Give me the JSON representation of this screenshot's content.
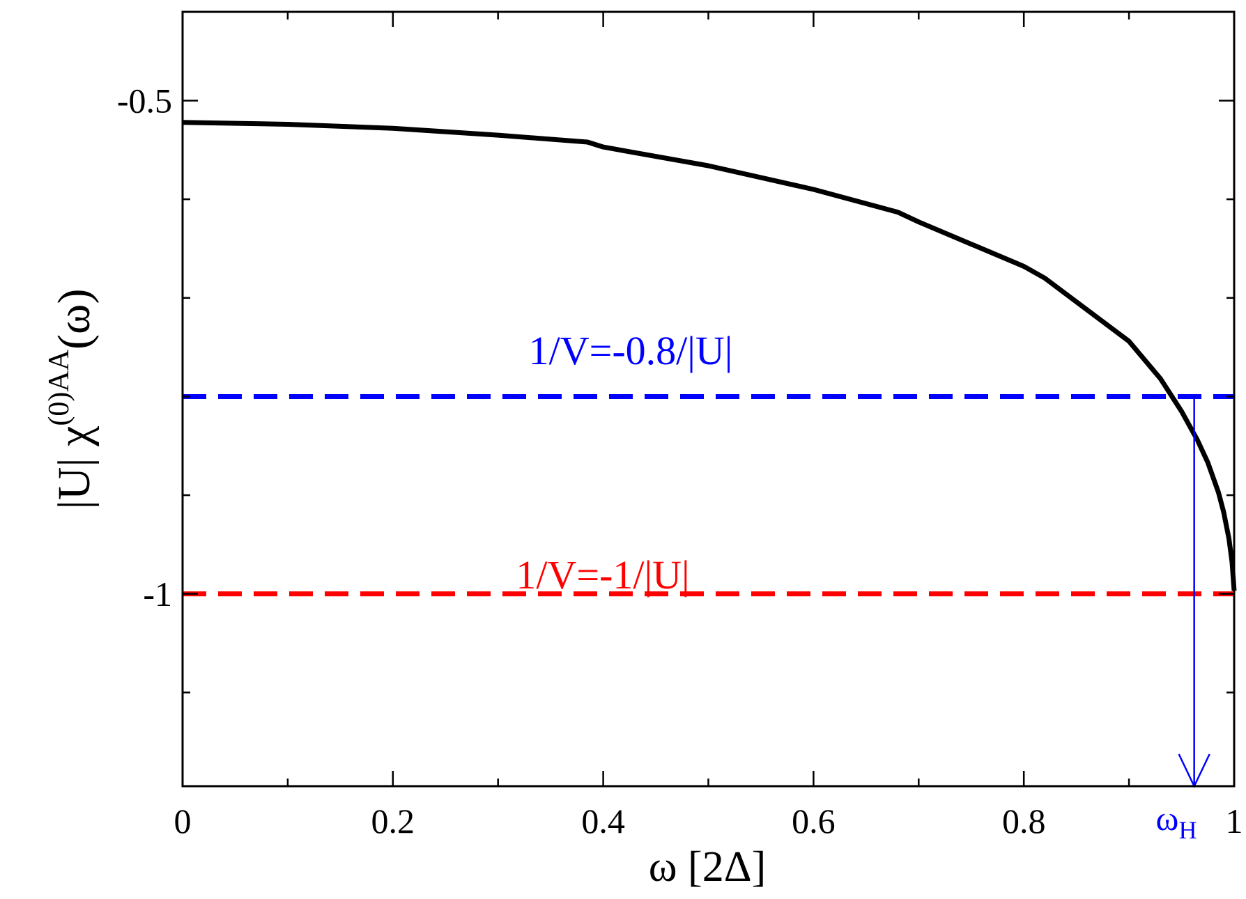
{
  "chart_data": {
    "type": "line",
    "xlabel": {
      "text": "ω [2Δ]"
    },
    "ylabel": {
      "prefix": "|U| χ",
      "superscript": "(0)AA",
      "suffix": "(ω)"
    },
    "xlim": [
      0,
      1
    ],
    "ylim": [
      -1.195,
      -0.41
    ],
    "x_ticks": [
      {
        "value": 0,
        "label": "0"
      },
      {
        "value": 0.2,
        "label": "0.2"
      },
      {
        "value": 0.4,
        "label": "0.4"
      },
      {
        "value": 0.6,
        "label": "0.6"
      },
      {
        "value": 0.8,
        "label": "0.8"
      },
      {
        "value": 1,
        "label": "1"
      }
    ],
    "x_minor_ticks": [
      0.1,
      0.3,
      0.5,
      0.7,
      0.9
    ],
    "y_ticks": [
      {
        "value": -0.5,
        "label": "-0.5"
      },
      {
        "value": -1,
        "label": "-1"
      }
    ],
    "y_minor_ticks": [
      -0.6,
      -0.7,
      -0.8,
      -0.9,
      -1.1
    ],
    "grid": false,
    "series": [
      {
        "color": "#000000",
        "style": "solid",
        "x": [
          0,
          0.1,
          0.2,
          0.3,
          0.385,
          0.4,
          0.5,
          0.6,
          0.68,
          0.7,
          0.8,
          0.82,
          0.9,
          0.93,
          0.95,
          0.965,
          0.975,
          0.985,
          0.99,
          0.995,
          0.998,
          1
        ],
        "y": [
          -0.522,
          -0.524,
          -0.528,
          -0.535,
          -0.542,
          -0.547,
          -0.566,
          -0.59,
          -0.613,
          -0.623,
          -0.668,
          -0.68,
          -0.744,
          -0.782,
          -0.815,
          -0.844,
          -0.867,
          -0.897,
          -0.917,
          -0.944,
          -0.968,
          -0.997
        ]
      }
    ],
    "reference_lines": [
      {
        "y": -0.8,
        "color": "#0000ff",
        "style": "dashed",
        "label": "1/V=-0.8/|U|"
      },
      {
        "y": -1,
        "color": "#ff0000",
        "style": "dashed",
        "label": "1/V=-1/|U|"
      }
    ],
    "annotations": [
      {
        "type": "arrow",
        "x": 0.962,
        "y_from": -0.8,
        "y_to": -1.195,
        "color": "#0000ff",
        "label": "ω",
        "label_sub": "H"
      }
    ]
  }
}
